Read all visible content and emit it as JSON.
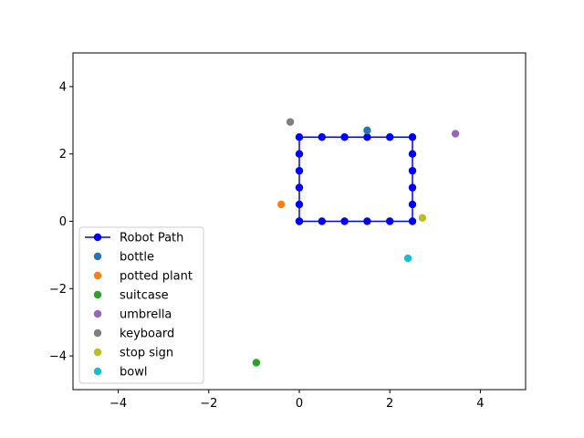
{
  "chart_data": {
    "type": "scatter",
    "title": "",
    "xlabel": "",
    "ylabel": "",
    "xlim": [
      -5,
      5
    ],
    "ylim": [
      -5,
      5
    ],
    "xticks": [
      -4,
      -2,
      0,
      2,
      4
    ],
    "yticks": [
      -4,
      -2,
      0,
      2,
      4
    ],
    "tick_labels_x": [
      "−4",
      "−2",
      "0",
      "2",
      "4"
    ],
    "tick_labels_y": [
      "−4",
      "−2",
      "0",
      "2",
      "4"
    ],
    "grid": false,
    "legend_position": "lower-left",
    "path": {
      "name": "Robot Path",
      "color": "#0000ff",
      "x": [
        0,
        0.5,
        1,
        1.5,
        2,
        2.5,
        2.5,
        2.5,
        2.5,
        2.5,
        2.5,
        2,
        1.5,
        1,
        0.5,
        0,
        0,
        0,
        0,
        0,
        0
      ],
      "y": [
        0,
        0,
        0,
        0,
        0,
        0,
        0.5,
        1,
        1.5,
        2,
        2.5,
        2.5,
        2.5,
        2.5,
        2.5,
        2.5,
        2,
        1.5,
        1,
        0.5,
        0
      ]
    },
    "objects": [
      {
        "name": "bottle",
        "x": 1.5,
        "y": 2.7,
        "color": "#1f77b4"
      },
      {
        "name": "potted plant",
        "x": -0.4,
        "y": 0.5,
        "color": "#ff7f0e"
      },
      {
        "name": "suitcase",
        "x": -0.95,
        "y": -4.2,
        "color": "#2ca02c"
      },
      {
        "name": "umbrella",
        "x": 3.45,
        "y": 2.6,
        "color": "#9467bd"
      },
      {
        "name": "keyboard",
        "x": -0.2,
        "y": 2.95,
        "color": "#7f7f7f"
      },
      {
        "name": "stop sign",
        "x": 2.72,
        "y": 0.1,
        "color": "#bcbd22"
      },
      {
        "name": "bowl",
        "x": 2.4,
        "y": -1.1,
        "color": "#17becf"
      }
    ]
  }
}
